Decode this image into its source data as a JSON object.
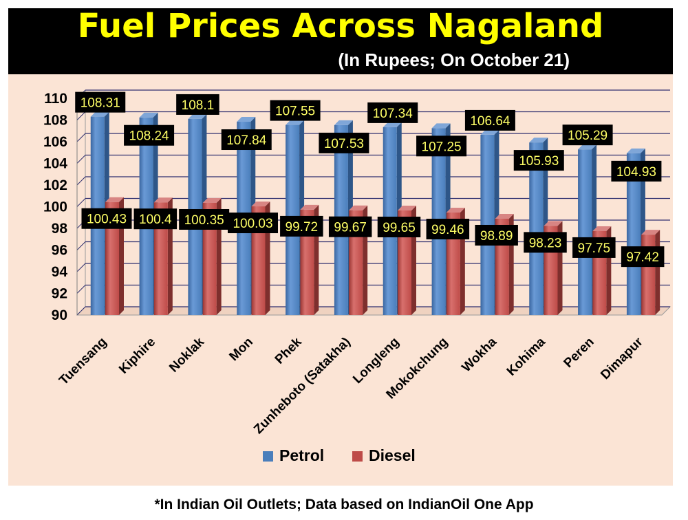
{
  "header": {
    "title": "Fuel Prices Across Nagaland",
    "subtitle": "(In Rupees; On October 21)"
  },
  "footnote": "*In Indian Oil Outlets; Data based on IndianOil One App",
  "colors": {
    "petrol": "#4A7EBB",
    "diesel": "#BE4B48",
    "label_bg": "#000000",
    "label_text": "#FFFF66",
    "title_text": "#FFFF00"
  },
  "chart_data": {
    "type": "bar",
    "title": "Fuel Prices Across Nagaland",
    "subtitle": "(In Rupees; On October 21)",
    "categories": [
      "Tuensang",
      "Kiphire",
      "Noklak",
      "Mon",
      "Phek",
      "Zunheboto (Satakha)",
      "Longleng",
      "Mokokchung",
      "Wokha",
      "Kohima",
      "Peren",
      "Dimapur"
    ],
    "series": [
      {
        "name": "Petrol",
        "values": [
          108.31,
          108.24,
          108.1,
          107.84,
          107.55,
          107.53,
          107.34,
          107.25,
          106.64,
          105.93,
          105.29,
          104.93
        ]
      },
      {
        "name": "Diesel",
        "values": [
          100.43,
          100.4,
          100.35,
          100.03,
          99.72,
          99.67,
          99.65,
          99.46,
          98.89,
          98.23,
          97.75,
          97.42
        ]
      }
    ],
    "data_labels": {
      "petrol": [
        "108.31",
        "108.24",
        "108.1",
        "107.84",
        "107.55",
        "107.53",
        "107.34",
        "107.25",
        "106.64",
        "105.93",
        "105.29",
        "104.93"
      ],
      "diesel": [
        "100.43",
        "100.4",
        "100.35",
        "100.03",
        "99.72",
        "99.67",
        "99.65",
        "99.46",
        "98.89",
        "98.23",
        "97.75",
        "97.42"
      ]
    },
    "y_ticks": [
      "90",
      "92",
      "94",
      "96",
      "98",
      "100",
      "102",
      "104",
      "106",
      "108",
      "110"
    ],
    "xlabel": "",
    "ylabel": "",
    "ylim": [
      90,
      110
    ],
    "grid": true,
    "legend_position": "bottom"
  }
}
